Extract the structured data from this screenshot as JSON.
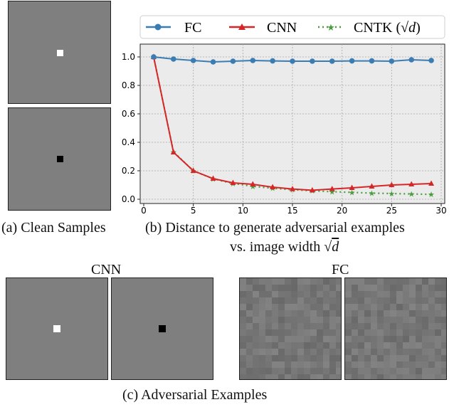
{
  "captions": {
    "a": "(a) Clean Samples",
    "b_line1": "(b) Distance to generate adversarial examples",
    "b_line2_prefix": "vs. image width",
    "c": "(c) Adversarial Examples"
  },
  "group_labels": {
    "cnn": "CNN",
    "fc": "FC"
  },
  "colors": {
    "fc": "#3b7db3",
    "cnn": "#d62728",
    "cntk": "#4a9e3f",
    "sample_gray": "#7f7f7f"
  },
  "chart_data": {
    "type": "line",
    "xlabel": "",
    "ylabel": "",
    "xlim": [
      0,
      30
    ],
    "ylim": [
      0,
      1.05
    ],
    "xticks": [
      0,
      5,
      10,
      15,
      20,
      25,
      30
    ],
    "yticks": [
      0.0,
      0.2,
      0.4,
      0.6,
      0.8,
      1.0
    ],
    "xtick_labels": [
      "0",
      "5",
      "10",
      "15",
      "20",
      "25",
      "30"
    ],
    "ytick_labels": [
      "0.0",
      "0.2",
      "0.4",
      "0.6",
      "0.8",
      "1.0"
    ],
    "grid": true,
    "legend_position": "top",
    "x": [
      1,
      3,
      5,
      7,
      9,
      11,
      13,
      15,
      17,
      19,
      21,
      23,
      25,
      27,
      29
    ],
    "series": [
      {
        "name": "FC",
        "marker": "circle",
        "style": "solid",
        "values": [
          1.0,
          0.985,
          0.975,
          0.965,
          0.97,
          0.975,
          0.972,
          0.97,
          0.97,
          0.97,
          0.972,
          0.972,
          0.97,
          0.98,
          0.975
        ]
      },
      {
        "name": "CNN",
        "marker": "triangle",
        "style": "solid",
        "values": [
          1.0,
          0.33,
          0.2,
          0.145,
          0.115,
          0.105,
          0.085,
          0.072,
          0.063,
          0.072,
          0.08,
          0.09,
          0.1,
          0.105,
          0.11
        ]
      },
      {
        "name": "CNTK (1/√d)",
        "legend_prefix": "CNTK (",
        "legend_sqrt": "d",
        "legend_suffix": ")",
        "marker": "star",
        "style": "dotted",
        "values": [
          1.0,
          0.333,
          0.2,
          0.143,
          0.111,
          0.091,
          0.077,
          0.067,
          0.059,
          0.053,
          0.048,
          0.043,
          0.04,
          0.037,
          0.034
        ]
      }
    ]
  }
}
